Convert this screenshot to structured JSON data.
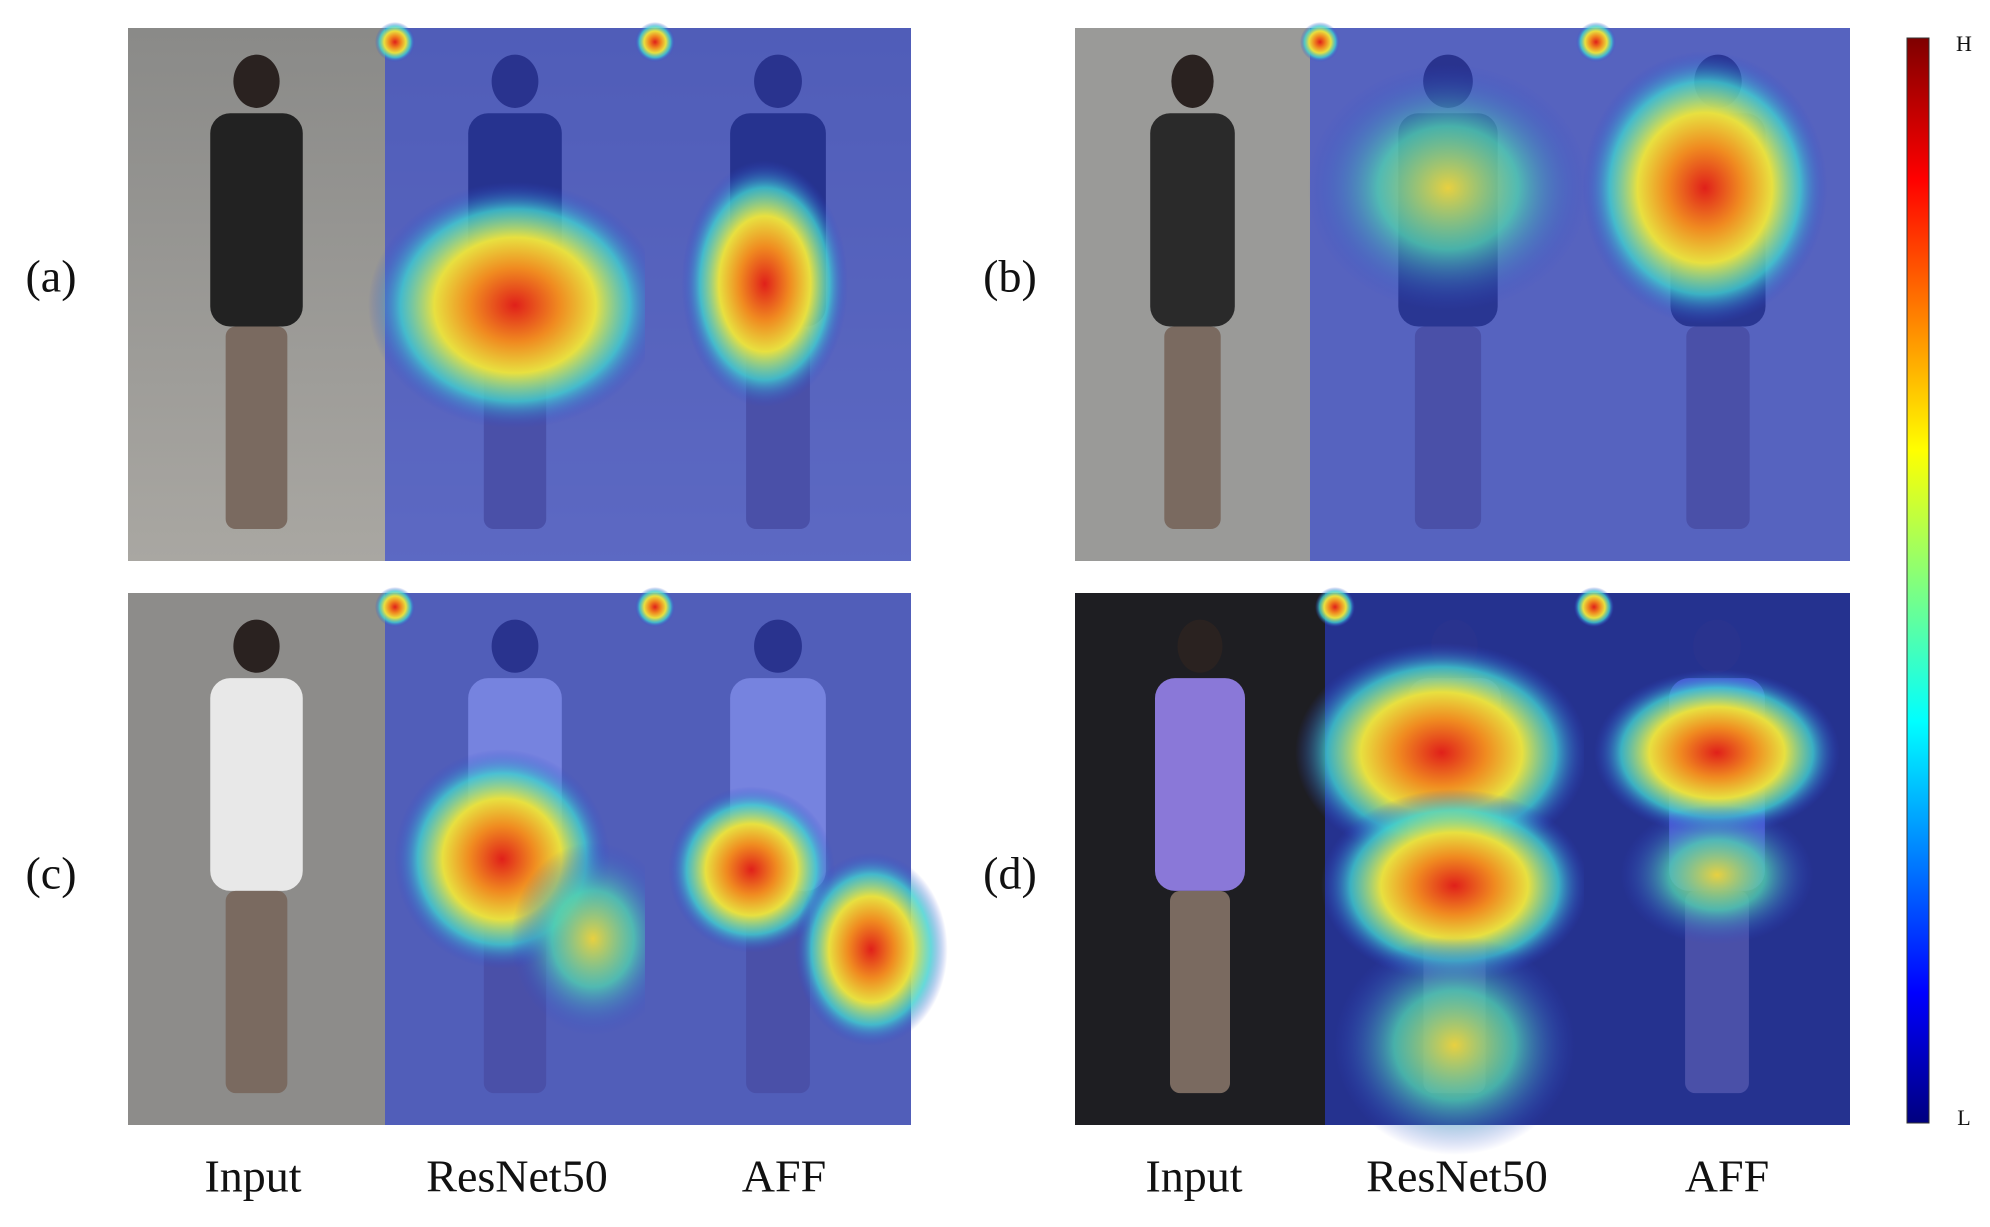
{
  "panels": [
    {
      "label": "(a)"
    },
    {
      "label": "(b)"
    },
    {
      "label": "(c)"
    },
    {
      "label": "(d)"
    }
  ],
  "column_labels": {
    "left": [
      "Input",
      "ResNet50",
      "AFF"
    ],
    "right": [
      "Input",
      "ResNet50",
      "AFF"
    ]
  },
  "colorbar": {
    "high": "H",
    "low": "L"
  }
}
